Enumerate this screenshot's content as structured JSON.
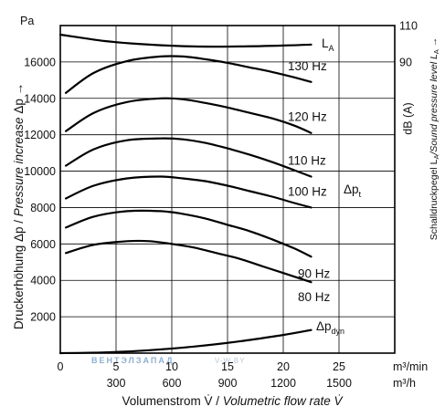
{
  "chart_data": {
    "type": "line",
    "units": {
      "left": "Pa",
      "right": "dB (A)",
      "x_top": "m³/min",
      "x_bottom": "m³/h"
    },
    "right_axis_ticks": [
      "110",
      "90"
    ],
    "xlim": [
      0,
      30
    ],
    "ylim": [
      0,
      18000
    ],
    "x_ticks": [
      0,
      5,
      10,
      15,
      20,
      25
    ],
    "x_ticks_secondary": [
      "300",
      "600",
      "900",
      "1200",
      "1500"
    ],
    "y_ticks": [
      2000,
      4000,
      6000,
      8000,
      10000,
      12000,
      14000,
      16000
    ],
    "xlabel": {
      "de": "Volumenstrom V̇ / ",
      "en": "Volumetric flow rate V̇"
    },
    "ylabel": {
      "de": "Druckerhöhung Δp / ",
      "en": "Pressure increase",
      "suffix": "  Δp →"
    },
    "ylabel_right": {
      "de": "Schalldruckpegel L",
      "de_sub": "A",
      "en": "/Sound pressure level L",
      "en_sub": "A",
      "suffix": " →"
    },
    "grid": true,
    "series": [
      {
        "name": "80 Hz",
        "x": [
          0.5,
          3,
          6,
          8,
          10,
          12,
          14,
          16,
          18,
          20,
          22.5
        ],
        "values": [
          5500,
          5950,
          6150,
          6150,
          6000,
          5800,
          5500,
          5200,
          4800,
          4400,
          3900
        ]
      },
      {
        "name": "90 Hz",
        "x": [
          0.5,
          3,
          6,
          9,
          11,
          13,
          15,
          17,
          19,
          21,
          22.5
        ],
        "values": [
          6900,
          7500,
          7800,
          7800,
          7650,
          7400,
          7050,
          6700,
          6250,
          5750,
          5300
        ]
      },
      {
        "name": "100 Hz",
        "x": [
          0.5,
          3,
          6,
          9,
          11,
          13,
          15,
          17,
          19,
          21,
          22.5
        ],
        "values": [
          8500,
          9200,
          9600,
          9700,
          9600,
          9450,
          9200,
          8900,
          8600,
          8250,
          8000
        ]
      },
      {
        "name": "110 Hz",
        "x": [
          0.5,
          3,
          6,
          9,
          11,
          13,
          15,
          17,
          19,
          21,
          22.5
        ],
        "values": [
          10300,
          11200,
          11700,
          11800,
          11750,
          11550,
          11250,
          10900,
          10500,
          10050,
          9700
        ]
      },
      {
        "name": "120 Hz",
        "x": [
          0.5,
          3,
          6,
          9,
          11,
          13,
          15,
          17,
          19,
          21,
          22.5
        ],
        "values": [
          12200,
          13200,
          13800,
          14000,
          13950,
          13750,
          13500,
          13200,
          12900,
          12500,
          12100
        ]
      },
      {
        "name": "130 Hz",
        "x": [
          0.5,
          3,
          6,
          9,
          11,
          13,
          15,
          17,
          19,
          21,
          22.5
        ],
        "values": [
          14300,
          15400,
          16050,
          16300,
          16300,
          16150,
          15950,
          15700,
          15450,
          15150,
          14900
        ]
      },
      {
        "name": "Δp_dyn",
        "x": [
          0,
          4,
          8,
          12,
          16,
          20,
          22.5
        ],
        "values": [
          0,
          40,
          160,
          360,
          640,
          1000,
          1270
        ]
      },
      {
        "name": "L_A",
        "axis": "right",
        "x": [
          0,
          4,
          8,
          12,
          16,
          20,
          22.5
        ],
        "values": [
          17500,
          17150,
          16950,
          16850,
          16850,
          16900,
          16950
        ]
      }
    ],
    "annotations": {
      "delta_p_t": "Δp",
      "delta_p_t_sub": "t"
    },
    "series_labels": {
      "L_A": {
        "main": "L",
        "sub": "A"
      },
      "dyn": {
        "main": "Δp",
        "sub": "dyn"
      }
    },
    "watermark": {
      "main": "ВЕНТЭЛЗАПАД",
      "sub": "V-W.BY"
    }
  }
}
